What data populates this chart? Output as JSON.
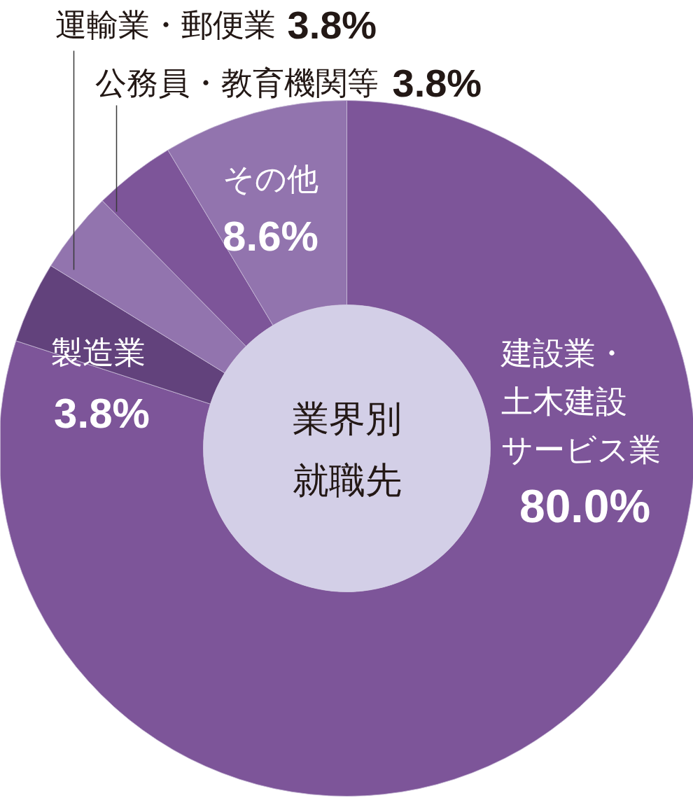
{
  "chart_data": {
    "type": "donut",
    "title": "業界別就職先",
    "categories": [
      "建設業・土木建設サービス業",
      "製造業",
      "運輸業・郵便業",
      "公務員・教育機関等",
      "その他"
    ],
    "values": [
      80.0,
      3.8,
      3.8,
      3.8,
      8.6
    ],
    "value_labels": [
      "80.0%",
      "3.8%",
      "3.8%",
      "3.8%",
      "8.6%"
    ],
    "colors": [
      "#7d5599",
      "#62427c",
      "#9274ae",
      "#7d5599",
      "#9274ae"
    ]
  }
}
